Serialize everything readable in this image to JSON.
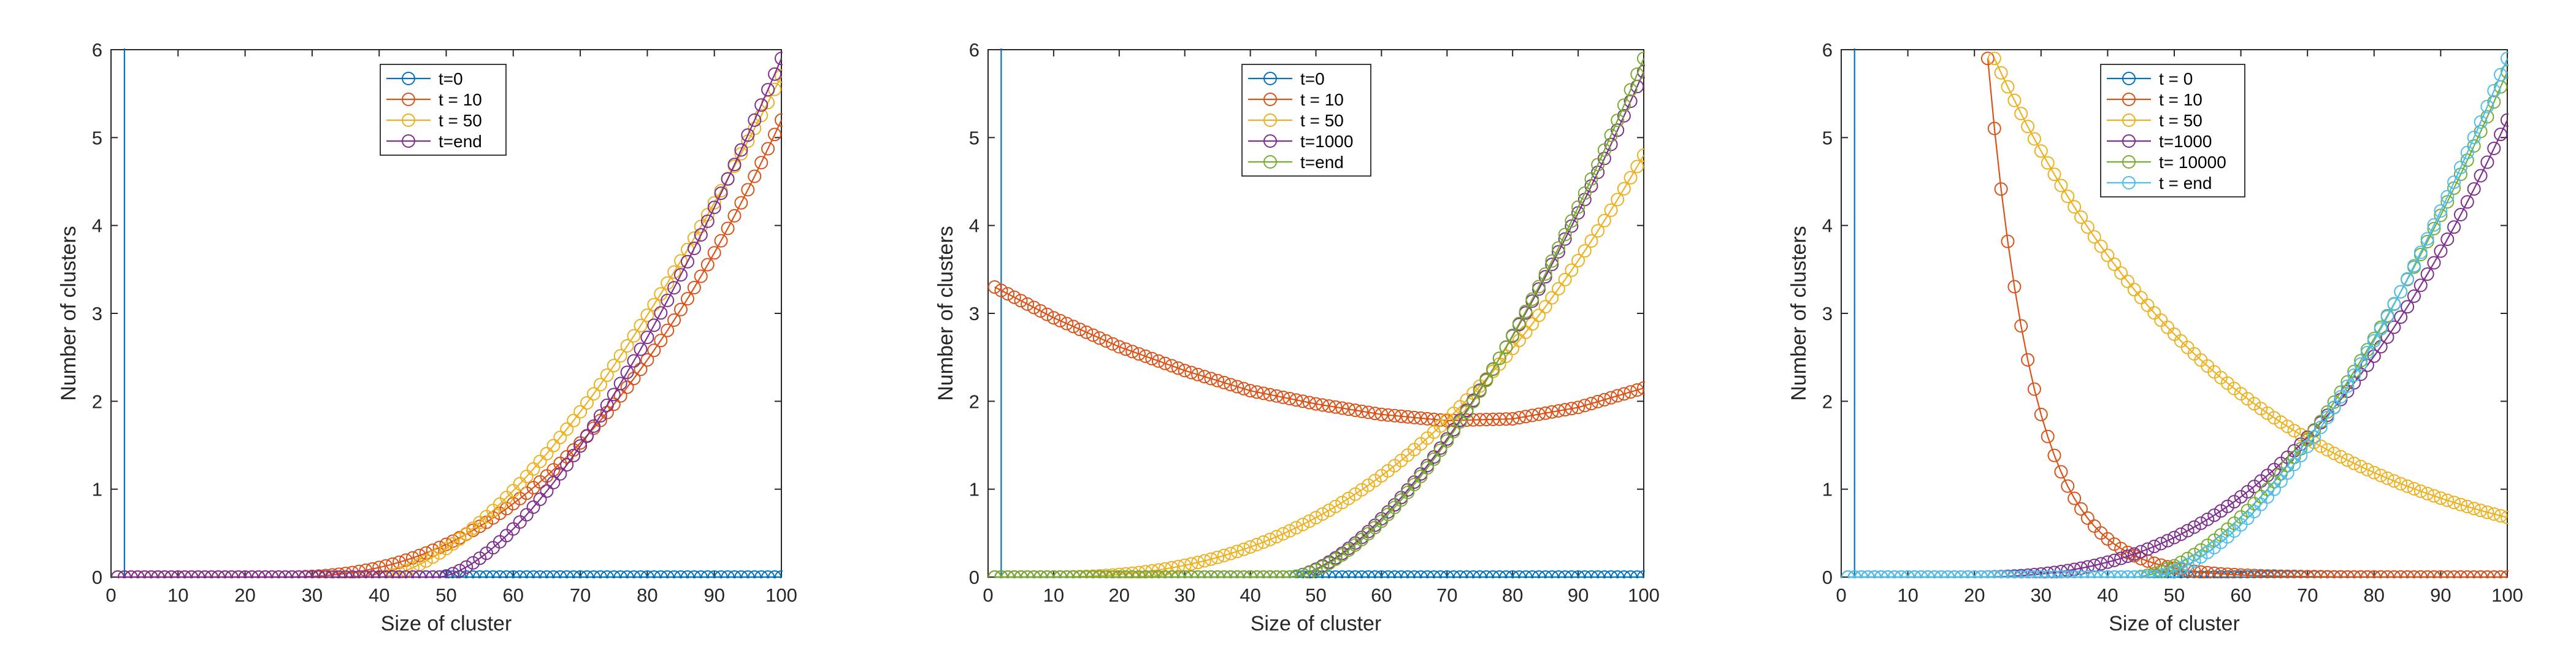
{
  "chart_data": [
    {
      "type": "line",
      "xlabel": "Size of cluster",
      "ylabel": "Number of clusters",
      "xlim": [
        0,
        100
      ],
      "ylim": [
        0,
        6
      ],
      "xticks": [
        0,
        10,
        20,
        30,
        40,
        50,
        60,
        70,
        80,
        90,
        100
      ],
      "yticks": [
        0,
        1,
        2,
        3,
        4,
        5,
        6
      ],
      "legend_position": "top-center",
      "marker": "open-circle",
      "series": [
        {
          "name": "t=0",
          "color": "#0072BD",
          "kind": "spike",
          "spike_x": 2,
          "tail": 0
        },
        {
          "name": "t = 10",
          "color": "#D95319",
          "kind": "growth",
          "x_start": 1,
          "x_end": 100,
          "y_end": 5.2,
          "onset": 25,
          "power": 2.4
        },
        {
          "name": "t = 50",
          "color": "#EDB120",
          "kind": "growth",
          "x_start": 1,
          "x_end": 100,
          "y_end": 5.7,
          "onset": 40,
          "power": 1.6
        },
        {
          "name": "t=end",
          "color": "#7E2F8E",
          "kind": "growth",
          "x_start": 1,
          "x_end": 100,
          "y_end": 5.9,
          "onset": 49,
          "power": 1.55
        }
      ]
    },
    {
      "type": "line",
      "xlabel": "Size of cluster",
      "ylabel": "Number of clusters",
      "xlim": [
        0,
        100
      ],
      "ylim": [
        0,
        6
      ],
      "xticks": [
        0,
        10,
        20,
        30,
        40,
        50,
        60,
        70,
        80,
        90,
        100
      ],
      "yticks": [
        0,
        1,
        2,
        3,
        4,
        5,
        6
      ],
      "legend_position": "top-center",
      "marker": "open-circle",
      "series": [
        {
          "name": "t=0",
          "color": "#0072BD",
          "kind": "spike",
          "spike_x": 2,
          "tail": 0
        },
        {
          "name": "t = 10",
          "color": "#D95319",
          "kind": "valley",
          "x_start": 1,
          "x_end": 100,
          "points": [
            [
              1,
              3.3
            ],
            [
              10,
              2.95
            ],
            [
              20,
              2.62
            ],
            [
              30,
              2.35
            ],
            [
              40,
              2.12
            ],
            [
              50,
              1.97
            ],
            [
              60,
              1.85
            ],
            [
              70,
              1.78
            ],
            [
              80,
              1.8
            ],
            [
              90,
              1.93
            ],
            [
              100,
              2.15
            ]
          ]
        },
        {
          "name": "t = 50",
          "color": "#EDB120",
          "kind": "growth",
          "x_start": 1,
          "x_end": 100,
          "y_end": 4.8,
          "onset": 8,
          "power": 2.5
        },
        {
          "name": "t=1000",
          "color": "#7E2F8E",
          "kind": "growth",
          "x_start": 1,
          "x_end": 100,
          "y_end": 5.75,
          "onset": 46,
          "power": 1.6
        },
        {
          "name": "t=end",
          "color": "#77AC30",
          "kind": "growth",
          "x_start": 1,
          "x_end": 100,
          "y_end": 5.9,
          "onset": 46,
          "power": 1.65
        }
      ]
    },
    {
      "type": "line",
      "xlabel": "Size of cluster",
      "ylabel": "Number of clusters",
      "xlim": [
        0,
        100
      ],
      "ylim": [
        0,
        6
      ],
      "xticks": [
        0,
        10,
        20,
        30,
        40,
        50,
        60,
        70,
        80,
        90,
        100
      ],
      "yticks": [
        0,
        1,
        2,
        3,
        4,
        5,
        6
      ],
      "legend_position": "top-center",
      "marker": "open-circle",
      "series": [
        {
          "name": "t = 0",
          "color": "#0072BD",
          "kind": "spike",
          "spike_x": 2,
          "tail": 0
        },
        {
          "name": "t = 10",
          "color": "#D95319",
          "kind": "decay",
          "x_start": 22,
          "x_end": 100,
          "y_start": 5.9,
          "rate": 0.145
        },
        {
          "name": "t = 50",
          "color": "#EDB120",
          "kind": "decay",
          "x_start": 23,
          "x_end": 100,
          "y_start": 5.9,
          "rate": 0.0281,
          "floor": 0.0
        },
        {
          "name": "t=1000",
          "color": "#7E2F8E",
          "kind": "growth",
          "x_start": 1,
          "x_end": 100,
          "y_end": 5.2,
          "onset": 18,
          "power": 2.6
        },
        {
          "name": "t= 10000",
          "color": "#77AC30",
          "kind": "growth",
          "x_start": 1,
          "x_end": 100,
          "y_end": 5.75,
          "onset": 44,
          "power": 1.7
        },
        {
          "name": "t = end",
          "color": "#4DBEEE",
          "kind": "growth",
          "x_start": 1,
          "x_end": 100,
          "y_end": 5.9,
          "onset": 46,
          "power": 1.7
        }
      ]
    }
  ]
}
